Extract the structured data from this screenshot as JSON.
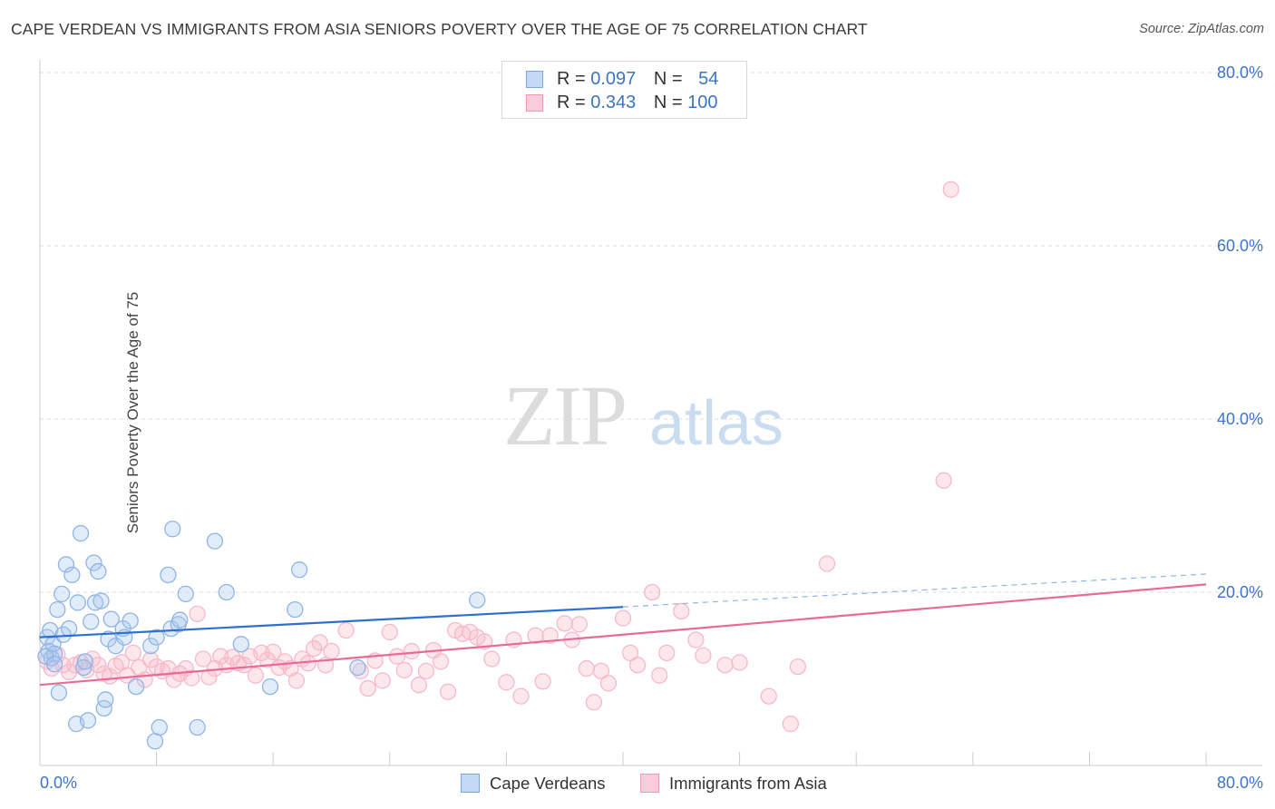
{
  "title": "CAPE VERDEAN VS IMMIGRANTS FROM ASIA SENIORS POVERTY OVER THE AGE OF 75 CORRELATION CHART",
  "source": "Source: ZipAtlas.com",
  "watermark": {
    "zip": "ZIP",
    "atlas": "atlas"
  },
  "legend": {
    "blue": {
      "r_label": "R =",
      "r_value": "0.097",
      "n_label": "N =",
      "n_value": "54"
    },
    "pink": {
      "r_label": "R =",
      "r_value": "0.343",
      "n_label": "N =",
      "n_value": "100"
    }
  },
  "bottom_legend": {
    "blue": "Cape Verdeans",
    "pink": "Immigrants from Asia"
  },
  "colors": {
    "blue_fill": "#a9c8ef",
    "blue_line": "#2f6fcf",
    "pink_fill": "#f6b9cc",
    "pink_line": "#e86b96",
    "axis_text": "#3d74c9"
  },
  "chart_data": {
    "type": "scatter",
    "title": "CAPE VERDEAN VS IMMIGRANTS FROM ASIA SENIORS POVERTY OVER THE AGE OF 75 CORRELATION CHART",
    "xlabel": "",
    "ylabel": "Seniors Poverty Over the Age of 75",
    "xlim": [
      0,
      80
    ],
    "ylim": [
      0,
      80
    ],
    "x_tick_labels": [
      "0.0%",
      "80.0%"
    ],
    "y_ticks": [
      20,
      40,
      60,
      80
    ],
    "y_tick_labels": [
      "20.0%",
      "40.0%",
      "60.0%",
      "80.0%"
    ],
    "series": [
      {
        "name": "Cape Verdeans",
        "r": 0.097,
        "n": 54,
        "trend": {
          "x": [
            0,
            40
          ],
          "y": [
            14.8,
            18.3
          ],
          "dashed_to": [
            80,
            22.1
          ]
        },
        "points": [
          [
            0.5,
            14.8
          ],
          [
            0.6,
            13.2
          ],
          [
            0.7,
            15.6
          ],
          [
            0.8,
            12.4
          ],
          [
            0.9,
            14.0
          ],
          [
            1.0,
            12.9
          ],
          [
            1.2,
            18.0
          ],
          [
            1.3,
            8.4
          ],
          [
            1.5,
            19.8
          ],
          [
            1.6,
            15.1
          ],
          [
            1.8,
            23.2
          ],
          [
            2.0,
            15.8
          ],
          [
            2.2,
            22.0
          ],
          [
            2.5,
            4.8
          ],
          [
            2.6,
            18.8
          ],
          [
            2.8,
            26.8
          ],
          [
            3.0,
            11.3
          ],
          [
            3.1,
            12.0
          ],
          [
            3.3,
            5.2
          ],
          [
            3.5,
            16.6
          ],
          [
            3.7,
            23.4
          ],
          [
            3.8,
            18.8
          ],
          [
            4.0,
            22.4
          ],
          [
            4.2,
            19.0
          ],
          [
            4.4,
            6.6
          ],
          [
            4.5,
            7.6
          ],
          [
            4.7,
            14.6
          ],
          [
            4.9,
            16.9
          ],
          [
            5.2,
            13.8
          ],
          [
            5.7,
            15.8
          ],
          [
            5.8,
            14.8
          ],
          [
            6.2,
            16.7
          ],
          [
            6.6,
            9.1
          ],
          [
            7.6,
            13.8
          ],
          [
            7.9,
            2.8
          ],
          [
            8.0,
            14.8
          ],
          [
            8.2,
            4.4
          ],
          [
            8.8,
            22.0
          ],
          [
            9.0,
            15.8
          ],
          [
            9.1,
            27.3
          ],
          [
            9.5,
            16.3
          ],
          [
            9.6,
            16.8
          ],
          [
            10.0,
            19.8
          ],
          [
            10.8,
            4.4
          ],
          [
            12.0,
            25.9
          ],
          [
            12.8,
            20.0
          ],
          [
            13.8,
            14.0
          ],
          [
            15.8,
            9.1
          ],
          [
            17.5,
            18.0
          ],
          [
            17.8,
            22.6
          ],
          [
            21.8,
            11.3
          ],
          [
            30.0,
            19.1
          ],
          [
            0.4,
            12.6
          ],
          [
            1.0,
            11.7
          ]
        ]
      },
      {
        "name": "Immigrants from Asia",
        "r": 0.343,
        "n": 100,
        "trend": {
          "x": [
            0,
            80
          ],
          "y": [
            9.3,
            20.9
          ]
        },
        "points": [
          [
            0.5,
            12.0
          ],
          [
            0.8,
            11.2
          ],
          [
            1.2,
            12.8
          ],
          [
            1.6,
            11.6
          ],
          [
            2.0,
            10.8
          ],
          [
            2.4,
            11.6
          ],
          [
            2.8,
            11.9
          ],
          [
            3.2,
            11.0
          ],
          [
            3.6,
            12.3
          ],
          [
            4.0,
            11.6
          ],
          [
            4.4,
            10.6
          ],
          [
            4.8,
            10.3
          ],
          [
            5.2,
            11.5
          ],
          [
            5.6,
            11.9
          ],
          [
            6.0,
            10.4
          ],
          [
            6.4,
            13.0
          ],
          [
            6.8,
            11.3
          ],
          [
            7.2,
            9.9
          ],
          [
            7.6,
            12.2
          ],
          [
            8.0,
            11.4
          ],
          [
            8.4,
            10.9
          ],
          [
            8.8,
            11.2
          ],
          [
            9.2,
            9.9
          ],
          [
            9.6,
            10.6
          ],
          [
            10.0,
            11.2
          ],
          [
            10.4,
            10.1
          ],
          [
            10.8,
            17.5
          ],
          [
            11.2,
            12.3
          ],
          [
            11.6,
            10.2
          ],
          [
            12.0,
            11.2
          ],
          [
            12.4,
            12.6
          ],
          [
            12.8,
            11.6
          ],
          [
            13.2,
            12.5
          ],
          [
            13.6,
            11.8
          ],
          [
            14.0,
            11.6
          ],
          [
            14.4,
            12.6
          ],
          [
            14.8,
            10.4
          ],
          [
            15.2,
            13.0
          ],
          [
            15.6,
            12.2
          ],
          [
            16.0,
            13.1
          ],
          [
            16.4,
            11.3
          ],
          [
            16.8,
            12.0
          ],
          [
            17.2,
            11.2
          ],
          [
            17.6,
            9.8
          ],
          [
            18.0,
            12.3
          ],
          [
            18.4,
            11.8
          ],
          [
            18.8,
            13.5
          ],
          [
            19.2,
            14.2
          ],
          [
            19.6,
            11.6
          ],
          [
            20.0,
            13.2
          ],
          [
            21.0,
            15.6
          ],
          [
            22.0,
            10.9
          ],
          [
            22.5,
            8.9
          ],
          [
            23.0,
            12.1
          ],
          [
            23.5,
            9.8
          ],
          [
            24.0,
            15.4
          ],
          [
            24.5,
            12.6
          ],
          [
            25.0,
            11.0
          ],
          [
            25.5,
            13.2
          ],
          [
            26.0,
            9.3
          ],
          [
            26.5,
            10.9
          ],
          [
            27.0,
            13.3
          ],
          [
            27.5,
            12.0
          ],
          [
            28.0,
            8.5
          ],
          [
            28.5,
            15.6
          ],
          [
            29.0,
            15.2
          ],
          [
            29.5,
            15.4
          ],
          [
            30.0,
            14.8
          ],
          [
            30.5,
            14.3
          ],
          [
            31.0,
            12.3
          ],
          [
            32.0,
            9.6
          ],
          [
            32.5,
            14.5
          ],
          [
            33.0,
            8.0
          ],
          [
            34.0,
            15.0
          ],
          [
            34.5,
            9.7
          ],
          [
            35.0,
            15.0
          ],
          [
            36.0,
            16.4
          ],
          [
            36.5,
            14.5
          ],
          [
            37.0,
            16.3
          ],
          [
            37.5,
            11.2
          ],
          [
            38.0,
            7.3
          ],
          [
            38.5,
            10.9
          ],
          [
            39.0,
            9.5
          ],
          [
            40.0,
            17.0
          ],
          [
            40.5,
            13.0
          ],
          [
            41.0,
            11.6
          ],
          [
            42.0,
            20.0
          ],
          [
            42.5,
            10.4
          ],
          [
            43.0,
            13.0
          ],
          [
            44.0,
            17.8
          ],
          [
            45.0,
            14.5
          ],
          [
            45.5,
            12.7
          ],
          [
            47.0,
            11.6
          ],
          [
            48.0,
            11.9
          ],
          [
            50.0,
            8.0
          ],
          [
            51.5,
            4.8
          ],
          [
            52.0,
            11.4
          ],
          [
            54.0,
            23.3
          ],
          [
            62.0,
            32.9
          ],
          [
            62.5,
            66.5
          ]
        ]
      }
    ]
  }
}
